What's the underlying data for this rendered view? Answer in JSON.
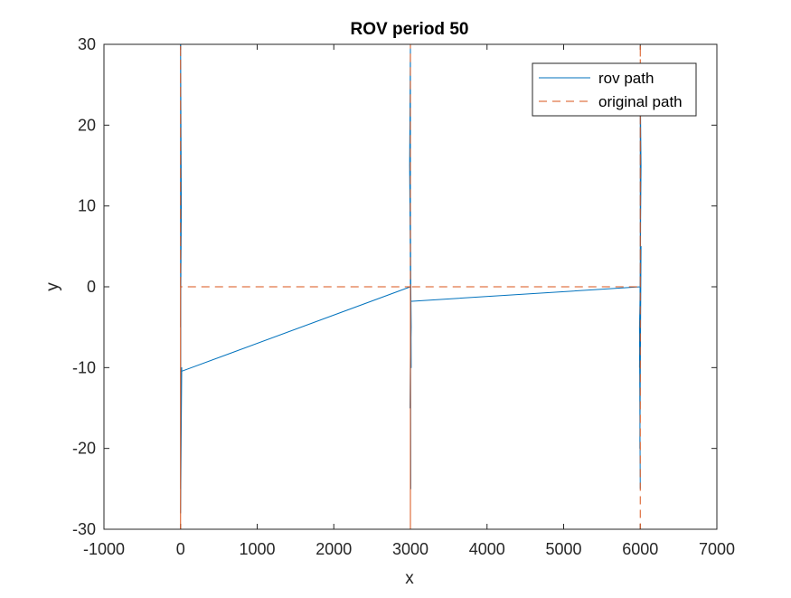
{
  "chart_data": {
    "type": "line",
    "title": "ROV period 50",
    "xlabel": "x",
    "ylabel": "y",
    "xlim": [
      -1000,
      7000
    ],
    "ylim": [
      -30,
      30
    ],
    "xticks": [
      "-1000",
      "0",
      "1000",
      "2000",
      "3000",
      "4000",
      "5000",
      "6000",
      "7000"
    ],
    "yticks": [
      "-30",
      "-20",
      "-10",
      "0",
      "10",
      "20",
      "30"
    ],
    "grid": false,
    "legend_position": "top-right",
    "series": [
      {
        "name": "rov path",
        "color": "#0072BD",
        "style": "solid",
        "x": [
          0,
          0,
          10,
          0,
          5,
          0,
          15,
          0,
          10,
          0,
          3000,
          3000,
          2990,
          3010,
          2995,
          3005,
          3000,
          3010,
          2995,
          3005,
          3000,
          6000,
          6000,
          6010,
          5990,
          6005,
          5995,
          6010,
          5990,
          6000
        ],
        "y": [
          0,
          30,
          10,
          -5,
          15,
          -25,
          -10,
          -28,
          -10.5,
          -10.5,
          0,
          30,
          15,
          -10,
          20,
          -25,
          5,
          -5,
          -15,
          -1.8,
          -1.8,
          0,
          25,
          15,
          -10,
          10,
          -20,
          5,
          -5,
          -25
        ]
      },
      {
        "name": "original path",
        "color": "#D95319",
        "style": "dashed",
        "x": [
          0,
          0,
          0,
          0,
          3000,
          3000,
          3000,
          3000,
          6000,
          6000,
          6000
        ],
        "y": [
          0,
          30,
          -30,
          0,
          0,
          30,
          -30,
          0,
          0,
          30,
          -30
        ]
      }
    ]
  }
}
